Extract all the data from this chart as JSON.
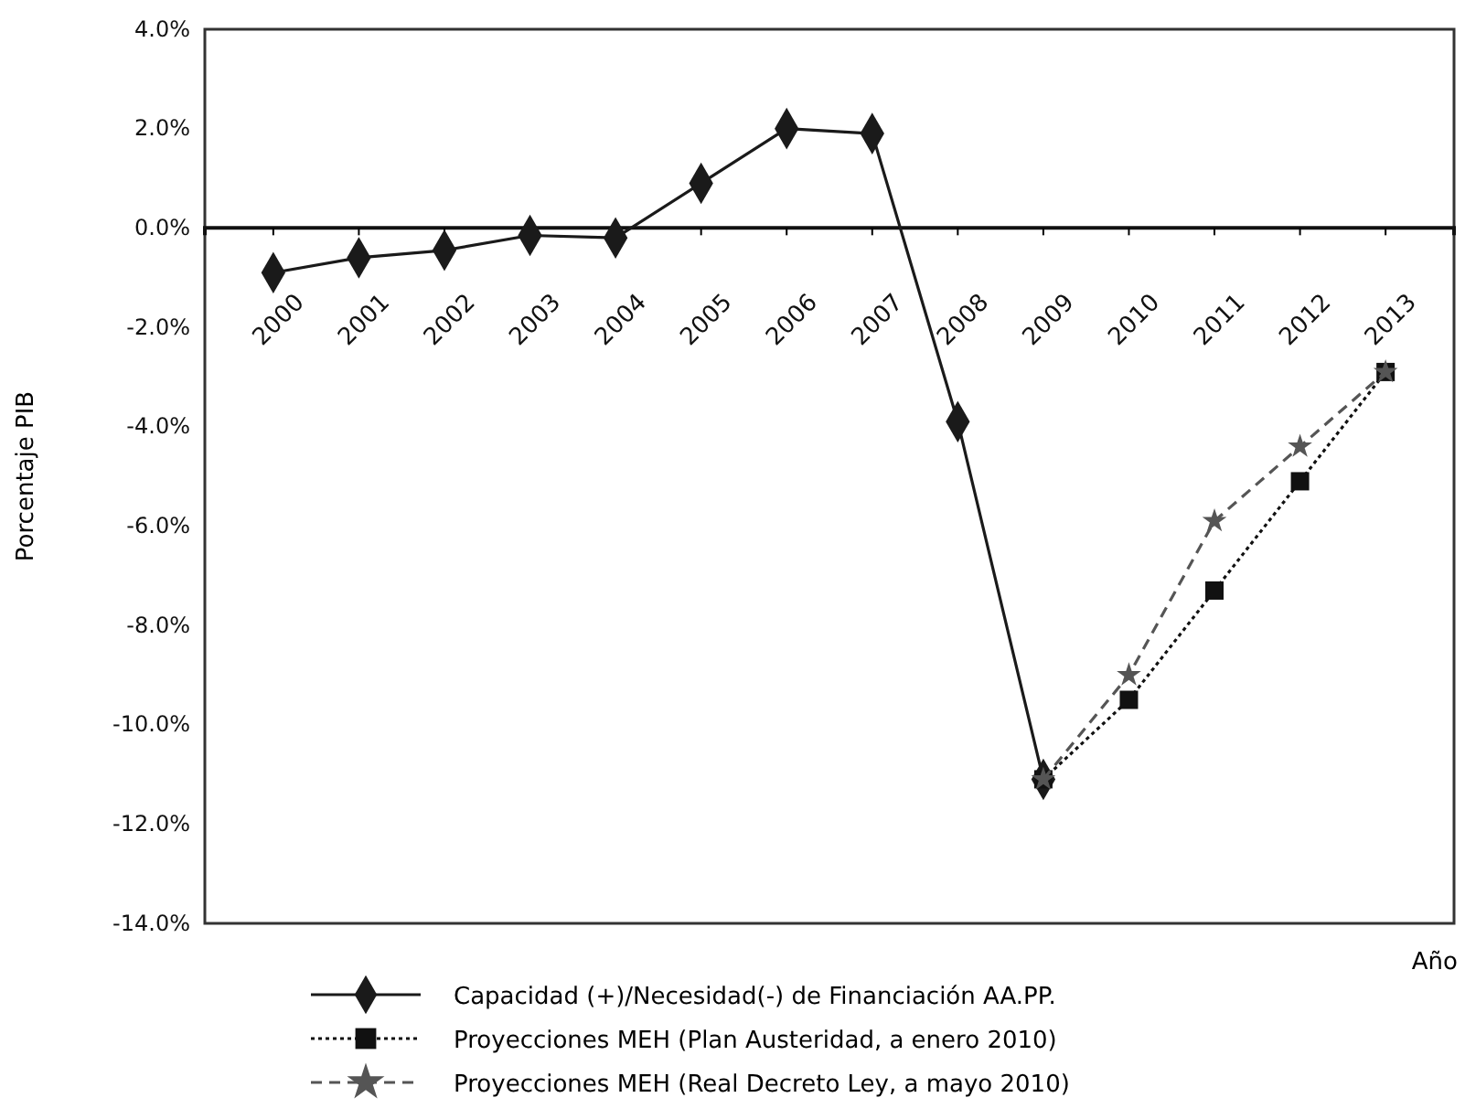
{
  "chart_data": {
    "type": "line",
    "ylabel": "Porcentaje PIB",
    "xlabel": "Año",
    "categories": [
      "2000",
      "2001",
      "2002",
      "2003",
      "2004",
      "2005",
      "2006",
      "2007",
      "2008",
      "2009",
      "2010",
      "2011",
      "2012",
      "2013"
    ],
    "ylim": [
      -14,
      4
    ],
    "yticks": [
      {
        "value": 4,
        "label": "4.0%"
      },
      {
        "value": 2,
        "label": "2.0%"
      },
      {
        "value": 0,
        "label": "0.0%"
      },
      {
        "value": -2,
        "label": "-2.0%"
      },
      {
        "value": -4,
        "label": "-4.0%"
      },
      {
        "value": -6,
        "label": "-6.0%"
      },
      {
        "value": -8,
        "label": "-8.0%"
      },
      {
        "value": -10,
        "label": "-10.0%"
      },
      {
        "value": -12,
        "label": "-12.0%"
      },
      {
        "value": -14,
        "label": "-14.0%"
      }
    ],
    "grid": false,
    "legend": "bottom",
    "series": [
      {
        "name": "Capacidad (+)/Necesidad(-) de Financiación AA.PP.",
        "color": "#1a1a1a",
        "marker": "diamond",
        "line_style": "solid",
        "values": [
          -0.9,
          -0.6,
          -0.45,
          -0.15,
          -0.2,
          0.9,
          2.0,
          1.9,
          -3.9,
          -11.1,
          null,
          null,
          null,
          null
        ]
      },
      {
        "name": "Proyecciones MEH (Plan Austeridad, a enero 2010)",
        "color": "#111111",
        "marker": "square",
        "line_style": "dotted",
        "values": [
          null,
          null,
          null,
          null,
          null,
          null,
          null,
          null,
          null,
          -11.1,
          -9.5,
          -7.3,
          -5.1,
          -2.9
        ]
      },
      {
        "name": "Proyecciones MEH (Real Decreto Ley, a mayo 2010)",
        "color": "#555555",
        "marker": "star",
        "line_style": "dashed",
        "values": [
          null,
          null,
          null,
          null,
          null,
          null,
          null,
          null,
          null,
          -11.1,
          -9.0,
          -5.9,
          -4.4,
          -2.9
        ]
      }
    ]
  }
}
